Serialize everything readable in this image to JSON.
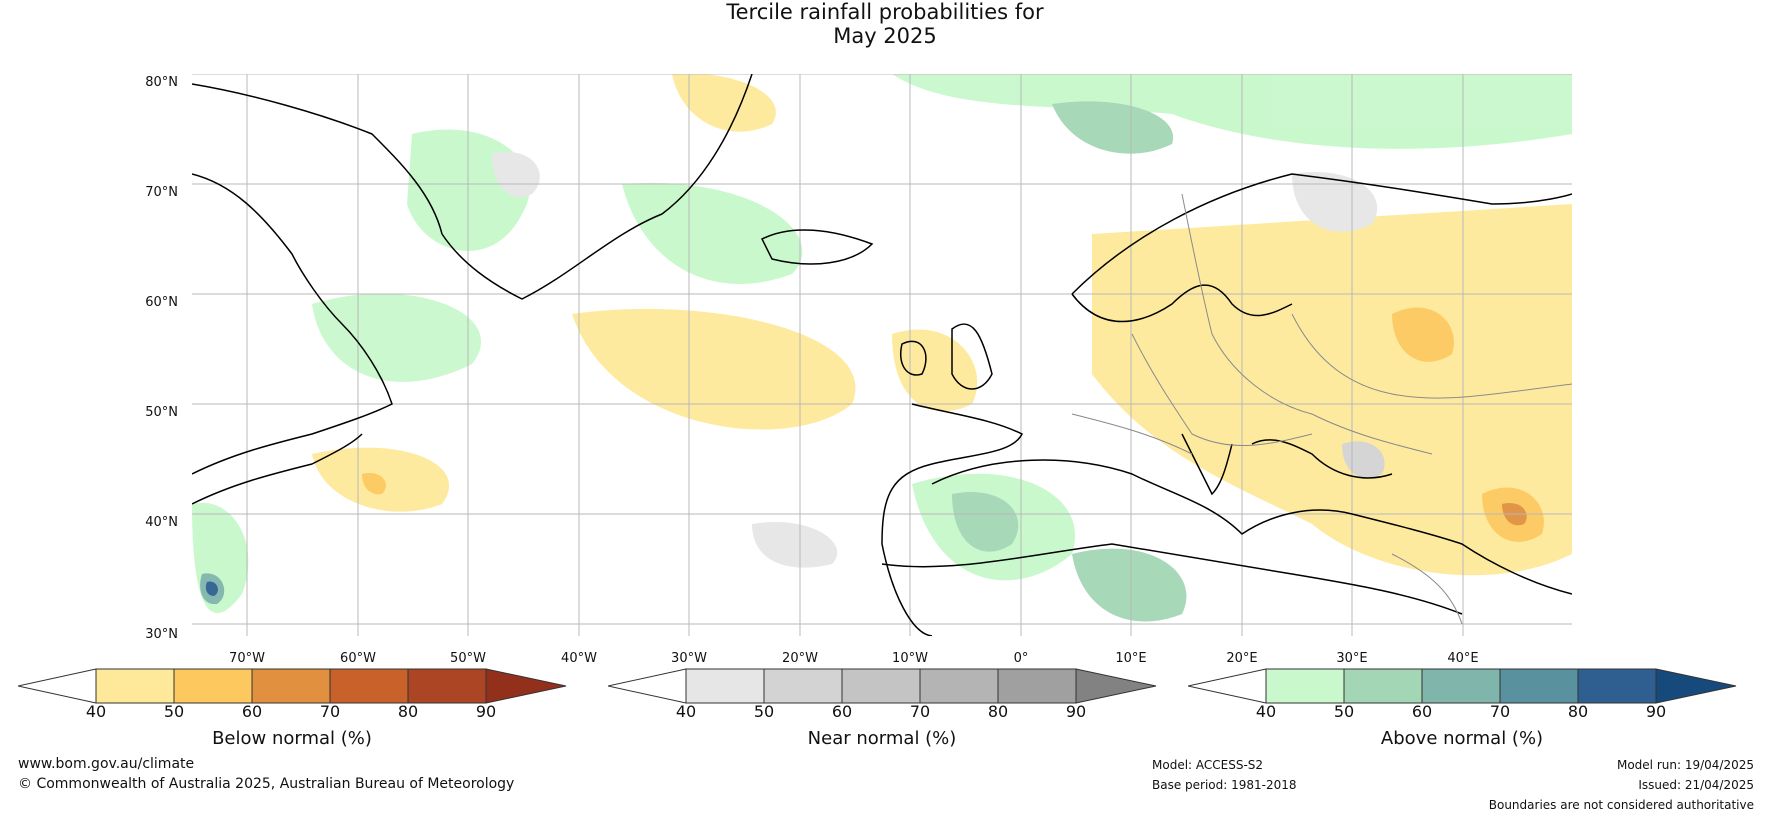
{
  "title": {
    "line1": "Tercile rainfall probabilities for",
    "line2": "May 2025"
  },
  "map": {
    "lat_labels": [
      "80°N",
      "70°N",
      "60°N",
      "50°N",
      "40°N",
      "30°N"
    ],
    "lon_labels": [
      "70°W",
      "60°W",
      "50°W",
      "40°W",
      "30°W",
      "20°W",
      "10°W",
      "0°",
      "10°E",
      "20°E",
      "30°E",
      "40°E"
    ]
  },
  "colorbars": [
    {
      "label": "Below normal (%)",
      "ticks": [
        "40",
        "50",
        "60",
        "70",
        "80",
        "90"
      ],
      "colors": [
        "#ffffff",
        "#fee99a",
        "#fdc95e",
        "#e0903e",
        "#c9612b",
        "#ac4523",
        "#93301c"
      ]
    },
    {
      "label": "Near normal (%)",
      "ticks": [
        "40",
        "50",
        "60",
        "70",
        "80",
        "90"
      ],
      "colors": [
        "#ffffff",
        "#e6e6e6",
        "#d3d3d3",
        "#c4c4c4",
        "#b4b4b4",
        "#a0a0a0",
        "#828282"
      ]
    },
    {
      "label": "Above normal (%)",
      "ticks": [
        "40",
        "50",
        "60",
        "70",
        "80",
        "90"
      ],
      "colors": [
        "#ffffff",
        "#c8f8cb",
        "#a3d6b4",
        "#7fb5aa",
        "#5a919e",
        "#2f5f90",
        "#174a7c"
      ]
    }
  ],
  "footer": {
    "website": "www.bom.gov.au/climate",
    "copyright": "© Commonwealth of Australia 2025, Australian Bureau of Meteorology",
    "model": "Model: ACCESS-S2",
    "base_period": "Base period: 1981-2018",
    "model_run": "Model run: 19/04/2025",
    "issued": "Issued: 21/04/2025",
    "disclaimer": "Boundaries are not considered authoritative"
  }
}
